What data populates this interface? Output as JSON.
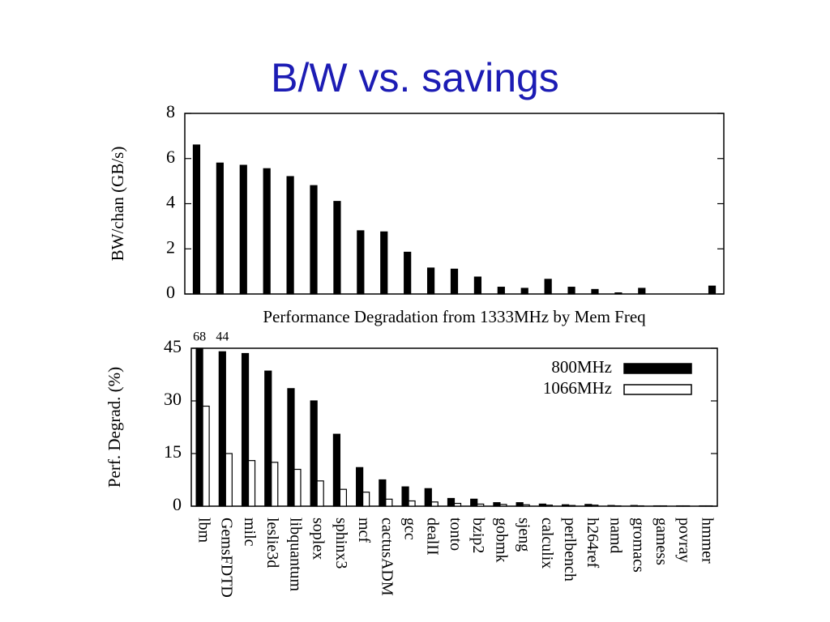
{
  "slide_title": "B/W vs. savings",
  "chart_data": [
    {
      "type": "bar",
      "ylabel": "BW/chan (GB/s)",
      "categories": [
        null,
        null,
        null,
        null,
        null,
        null,
        null,
        null,
        null,
        null,
        null,
        null,
        null,
        null,
        null,
        null,
        null,
        null,
        null,
        null,
        null,
        null,
        null
      ],
      "values": [
        6.6,
        5.8,
        5.7,
        5.55,
        5.2,
        4.8,
        4.1,
        2.8,
        2.75,
        1.85,
        1.15,
        1.1,
        0.75,
        0.3,
        0.25,
        0.65,
        0.3,
        0.2,
        0.05,
        0.25,
        0,
        0,
        0.35
      ],
      "color": "#000000",
      "ylim": [
        0,
        8
      ],
      "yticks": [
        0,
        2,
        4,
        6,
        8
      ],
      "grid": false
    },
    {
      "type": "bar",
      "title": "Performance Degradation from 1333MHz by Mem Freq",
      "ylabel": "Perf. Degrad. (%)",
      "categories": [
        "lbm",
        "GemsFDTD",
        "milc",
        "leslie3d",
        "libquantum",
        "soplex",
        "sphinx3",
        "mcf",
        "cactusADM",
        "gcc",
        "dealII",
        "tonto",
        "bzip2",
        "gobmk",
        "sjeng",
        "calculix",
        "perlbench",
        "h264ref",
        "namd",
        "gromacs",
        "gamess",
        "povray",
        "hmmer"
      ],
      "series": [
        {
          "name": "800MHz",
          "color": "#000000",
          "values": [
            68,
            44,
            43.5,
            38.5,
            33.5,
            30,
            20.5,
            11,
            7.5,
            5.5,
            5,
            2.2,
            2,
            1,
            1,
            0.6,
            0.4,
            0.5,
            0.2,
            0.2,
            0.1,
            0.1,
            0.1
          ],
          "value_labels": [
            "68",
            "44",
            null,
            null,
            null,
            null,
            null,
            null,
            null,
            null,
            null,
            null,
            null,
            null,
            null,
            null,
            null,
            null,
            null,
            null,
            null,
            null,
            null
          ]
        },
        {
          "name": "1066MHz",
          "color": "#ffffff",
          "values": [
            28.5,
            15,
            13,
            12.5,
            10.5,
            7.2,
            4.8,
            4,
            2,
            1.5,
            1.2,
            0.8,
            0.6,
            0.5,
            0.4,
            0.3,
            0.2,
            0.3,
            0.1,
            0.1,
            0.1,
            0.1,
            0.1
          ]
        }
      ],
      "ylim": [
        0,
        45
      ],
      "yticks": [
        0,
        15,
        30,
        45
      ],
      "grid": false,
      "legend": "upper right"
    }
  ]
}
